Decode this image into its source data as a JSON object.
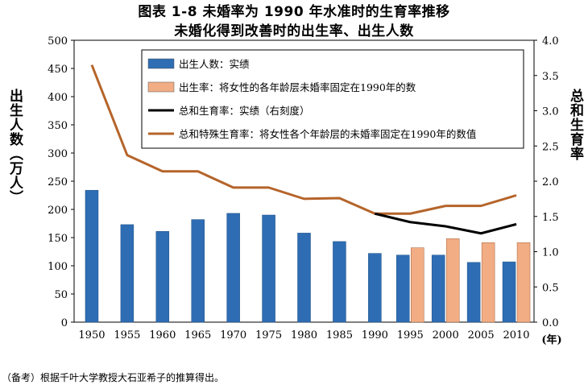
{
  "title_line1": "图表 1-8 未婚率为 1990 年水准时的生育率推移",
  "title_line2": "未婚化得到改善时的出生率、出生人数",
  "footnote": "（备考）根据千叶大学教授大石亚希子的推算得出。",
  "chart_data": {
    "type": "bar",
    "categories": [
      "1950",
      "1955",
      "1960",
      "1965",
      "1970",
      "1975",
      "1980",
      "1985",
      "1990",
      "1995",
      "2000",
      "2005",
      "2010"
    ],
    "x_unit": "(年)",
    "y_left": {
      "label": "出生人数（万人）",
      "ylim": [
        0,
        500
      ],
      "ticks": [
        0,
        50,
        100,
        150,
        200,
        250,
        300,
        350,
        400,
        450,
        500
      ]
    },
    "y_right": {
      "label": "总和生育率",
      "ylim": [
        0,
        4.0
      ],
      "ticks": [
        "0.0",
        "0.5",
        "1.0",
        "1.5",
        "2.0",
        "2.5",
        "3.0",
        "3.5",
        "4.0"
      ]
    },
    "grid": false,
    "legend_position": "top-right",
    "series": [
      {
        "name": "出生人数：实绩",
        "kind": "bar",
        "axis": "left",
        "color": "#2e6db4",
        "values": [
          234,
          173,
          161,
          182,
          193,
          190,
          158,
          143,
          122,
          119,
          119,
          106,
          107
        ]
      },
      {
        "name": "出生率：将女性的各年龄层未婚率固定在1990年的数",
        "kind": "bar",
        "axis": "left",
        "color": "#f2ad84",
        "values": [
          null,
          null,
          null,
          null,
          null,
          null,
          null,
          null,
          null,
          132,
          148,
          141,
          141
        ]
      },
      {
        "name": "总和生育率：实绩（右刻度）",
        "kind": "line",
        "axis": "right",
        "color": "#000000",
        "values": [
          null,
          null,
          null,
          null,
          null,
          null,
          null,
          null,
          1.54,
          1.42,
          1.36,
          1.26,
          1.39
        ]
      },
      {
        "name": "总和特殊生育率：将女性各个年龄层的未婚率固定在1990年的数值",
        "kind": "line",
        "axis": "right",
        "color": "#b5642a",
        "values": [
          3.65,
          2.37,
          2.14,
          2.14,
          1.91,
          1.91,
          1.75,
          1.76,
          1.54,
          1.54,
          1.65,
          1.65,
          1.8
        ]
      }
    ]
  }
}
